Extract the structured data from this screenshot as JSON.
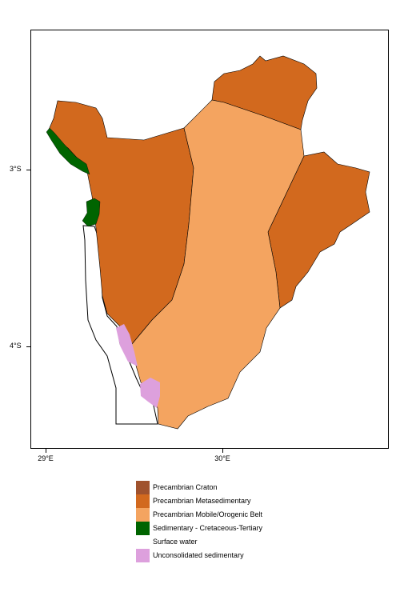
{
  "map": {
    "y_ticks": [
      {
        "label": "3°S"
      },
      {
        "label": "4°S"
      }
    ],
    "x_ticks": [
      {
        "label": "29°E"
      },
      {
        "label": "30°E"
      }
    ]
  },
  "legend": {
    "items": [
      {
        "label": "Precambrian Craton",
        "color": "#a0522d"
      },
      {
        "label": "Precambrian Metasedimentary",
        "color": "#d2691e"
      },
      {
        "label": "Precambrian Mobile/Orogenic Belt",
        "color": "#f4a460"
      },
      {
        "label": "Sedimentary - Cretaceous-Tertiary",
        "color": "#006400"
      },
      {
        "label": "Surface water",
        "color": "#ffffff"
      },
      {
        "label": "Unconsolidated sedimentary",
        "color": "#dda0dd"
      }
    ]
  }
}
